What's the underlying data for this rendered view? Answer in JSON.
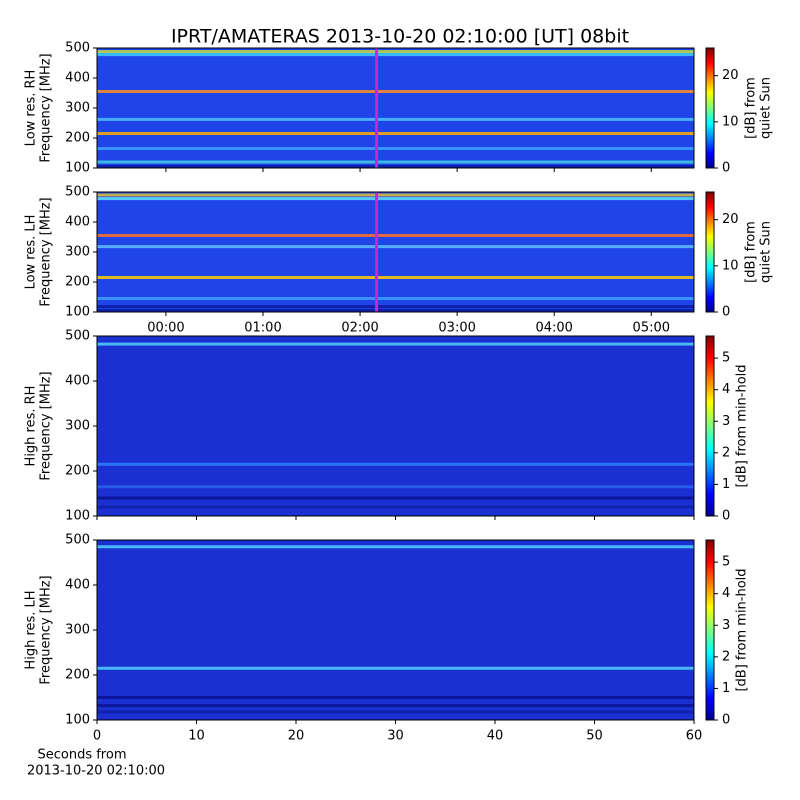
{
  "chart_data": [
    {
      "type": "heatmap",
      "title": "IPRT/AMATERAS 2013-10-20 02:10:00 [UT]   08bit",
      "y_label": [
        "Low res. RH",
        "Frequency [MHz]"
      ],
      "xlim": [
        -0.71,
        5.44
      ],
      "xticks": [
        0,
        1,
        2,
        3,
        4,
        5
      ],
      "ylim": [
        100,
        500
      ],
      "yticks": [
        100,
        200,
        300,
        400,
        500
      ],
      "background": "#1f45e8",
      "marker": {
        "x": 2.17,
        "color": "#d020d8"
      },
      "bands": [
        {
          "y": 488,
          "color": "#c8e040"
        },
        {
          "y": 478,
          "color": "#40d0ff"
        },
        {
          "y": 355,
          "color": "#ff9020"
        },
        {
          "y": 262,
          "color": "#50c0ff"
        },
        {
          "y": 215,
          "color": "#ffb000"
        },
        {
          "y": 165,
          "color": "#40a0ff"
        },
        {
          "y": 120,
          "color": "#40d0e0"
        },
        {
          "y": 105,
          "color": "#0a1aa0"
        }
      ],
      "colormap": "jet",
      "colorbar": {
        "label": [
          "[dB] from",
          "quiet Sun"
        ],
        "lim": [
          0,
          26
        ],
        "ticks": [
          0,
          10,
          20
        ]
      }
    },
    {
      "type": "heatmap",
      "y_label": [
        "Low res. LH",
        "Frequency [MHz]"
      ],
      "xlim": [
        -0.71,
        5.44
      ],
      "xticks": [
        {
          "value": 0,
          "label": "00:00"
        },
        {
          "value": 1,
          "label": "01:00"
        },
        {
          "value": 2,
          "label": "02:00"
        },
        {
          "value": 3,
          "label": "03:00"
        },
        {
          "value": 4,
          "label": "04:00"
        },
        {
          "value": 5,
          "label": "05:00"
        }
      ],
      "ylim": [
        100,
        500
      ],
      "yticks": [
        100,
        200,
        300,
        400,
        500
      ],
      "background": "#1f45e8",
      "marker": {
        "x": 2.17,
        "color": "#d020d8"
      },
      "bands": [
        {
          "y": 490,
          "color": "#e0c030"
        },
        {
          "y": 478,
          "color": "#60e0ff"
        },
        {
          "y": 355,
          "color": "#ff7020"
        },
        {
          "y": 318,
          "color": "#60c0ff"
        },
        {
          "y": 215,
          "color": "#ffd000"
        },
        {
          "y": 145,
          "color": "#40a0ff"
        },
        {
          "y": 118,
          "color": "#0a1aa0"
        },
        {
          "y": 105,
          "color": "#0a1aa0"
        }
      ],
      "colormap": "jet",
      "colorbar": {
        "label": [
          "[dB] from",
          "quiet Sun"
        ],
        "lim": [
          0,
          26
        ],
        "ticks": [
          0,
          10,
          20
        ]
      }
    },
    {
      "type": "heatmap",
      "y_label": [
        "High res. RH",
        "Frequency [MHz]"
      ],
      "xlim": [
        0,
        60
      ],
      "xticks": [
        0,
        10,
        20,
        30,
        40,
        50,
        60
      ],
      "ylim": [
        100,
        500
      ],
      "yticks": [
        100,
        200,
        300,
        400,
        500
      ],
      "background": "#1a30d0",
      "bands": [
        {
          "y": 482,
          "color": "#50d0ff"
        },
        {
          "y": 215,
          "color": "#3080ff"
        },
        {
          "y": 165,
          "color": "#2a60f0"
        },
        {
          "y": 140,
          "color": "#0a1290"
        },
        {
          "y": 120,
          "color": "#1020a8"
        }
      ],
      "colormap": "jet",
      "colorbar": {
        "label": [
          "[dB] from min-hold"
        ],
        "lim": [
          0,
          5.7
        ],
        "ticks": [
          0,
          1,
          2,
          3,
          4,
          5
        ]
      }
    },
    {
      "type": "heatmap",
      "y_label": [
        "High res. LH",
        "Frequency [MHz]"
      ],
      "x_label": [
        "Seconds from",
        "2013-10-20 02:10:00"
      ],
      "xlim": [
        0,
        60
      ],
      "xticks": [
        0,
        10,
        20,
        30,
        40,
        50,
        60
      ],
      "ylim": [
        100,
        500
      ],
      "yticks": [
        100,
        200,
        300,
        400,
        500
      ],
      "background": "#1a30d0",
      "bands": [
        {
          "y": 485,
          "color": "#50d0ff"
        },
        {
          "y": 215,
          "color": "#50d0ff"
        },
        {
          "y": 150,
          "color": "#0a1290"
        },
        {
          "y": 132,
          "color": "#0a1290"
        },
        {
          "y": 118,
          "color": "#1020a8"
        }
      ],
      "colormap": "jet",
      "colorbar": {
        "label": [
          "[dB] from min-hold"
        ],
        "lim": [
          0,
          5.7
        ],
        "ticks": [
          0,
          1,
          2,
          3,
          4,
          5
        ]
      }
    }
  ]
}
